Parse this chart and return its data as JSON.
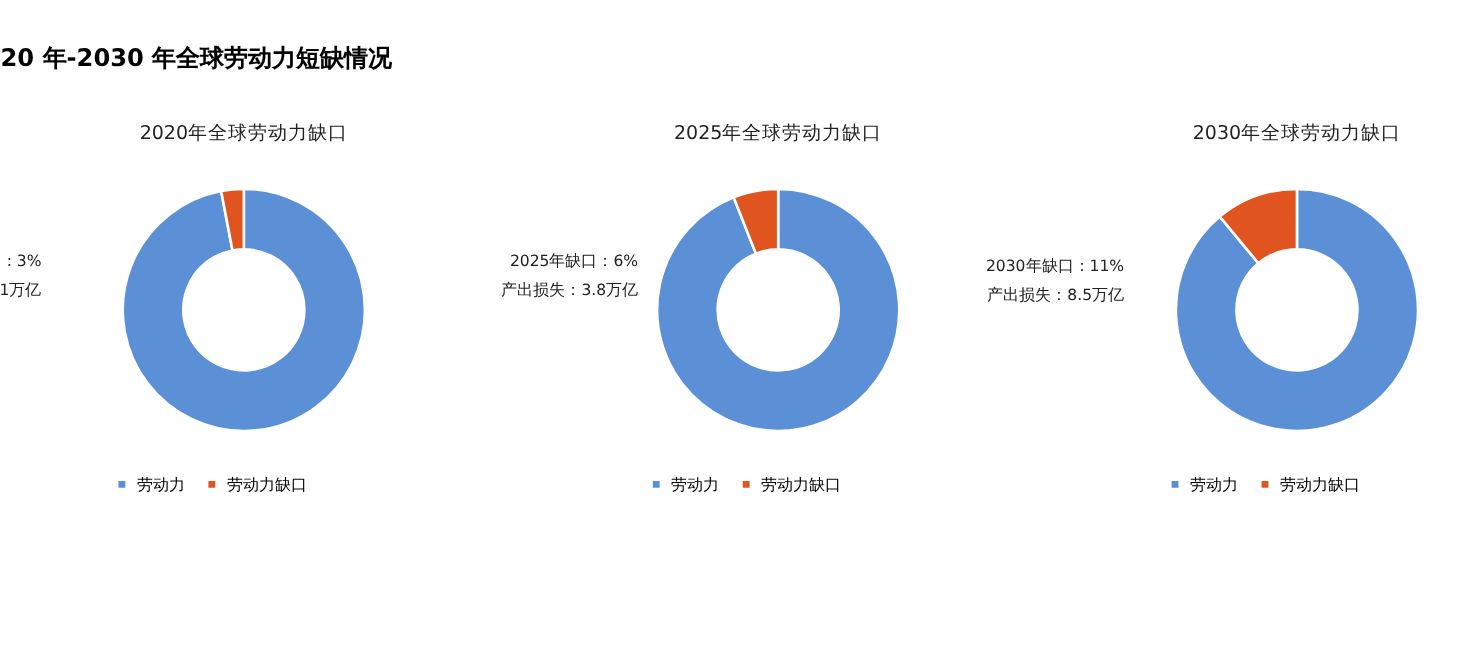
{
  "chart_data": [
    {
      "type": "donut",
      "title": "2020年全球劳动力缺口",
      "categories": [
        "劳动力",
        "劳动力缺口"
      ],
      "values": [
        97,
        3
      ],
      "colors": [
        "#5b8fd6",
        "#e0541f"
      ],
      "legend": "bottom",
      "annotations": [
        "20 年-2030 年全球劳动力短缺情况",
        ": 3%",
        "1万亿"
      ]
    },
    {
      "type": "donut",
      "title": "2025年全球劳动力缺口",
      "categories": [
        "劳动力",
        "劳动力缺口"
      ],
      "values": [
        94,
        6
      ],
      "colors": [
        "#5b8fd6",
        "#e0541f"
      ],
      "legend": "bottom",
      "annotations": [
        "2025年缺口：6%",
        "产出损失：3.8万亿"
      ]
    },
    {
      "type": "donut",
      "title": "2030年全球劳动力缺口",
      "categories": [
        "劳动力",
        "劳动力缺口"
      ],
      "values": [
        89,
        11
      ],
      "colors": [
        "#5b8fd6",
        "#e0541f"
      ],
      "legend": "bottom",
      "annotations": [
        "2030年缺口：11%",
        "产出损失：8.5万亿"
      ]
    }
  ]
}
